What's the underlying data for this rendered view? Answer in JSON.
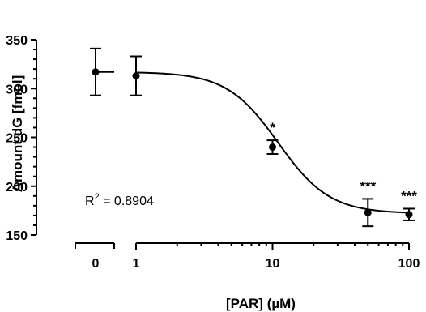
{
  "chart_data": {
    "type": "scatter",
    "xlabel": "[PAR] (µM)",
    "ylabel": "Amount dG [fmol]",
    "x_scale": "log",
    "x_axis_break": true,
    "xlim": [
      1,
      100
    ],
    "ylim": [
      150,
      350
    ],
    "y_ticks": [
      "150",
      "200",
      "250",
      "300",
      "350"
    ],
    "x_ticks": [
      "0",
      "1",
      "10",
      "100"
    ],
    "points": [
      {
        "x": 0,
        "y": 317,
        "err": 24
      },
      {
        "x": 1,
        "y": 313,
        "err": 20
      },
      {
        "x": 10,
        "y": 240,
        "err": 7
      },
      {
        "x": 50,
        "y": 173,
        "err": 14
      },
      {
        "x": 100,
        "y": 171,
        "err": 6
      }
    ],
    "fit": {
      "type": "sigmoidal dose-response",
      "top": 317,
      "bottom": 172,
      "ec50": 11,
      "hill": 2.3
    },
    "significance": [
      {
        "x": 10,
        "label": "*"
      },
      {
        "x": 50,
        "label": "***"
      },
      {
        "x": 100,
        "label": "***"
      }
    ],
    "annotation": {
      "r_label": "R",
      "r_sup": "2",
      "r_value": " = 0.8904"
    },
    "grid": false,
    "legend": "none"
  }
}
